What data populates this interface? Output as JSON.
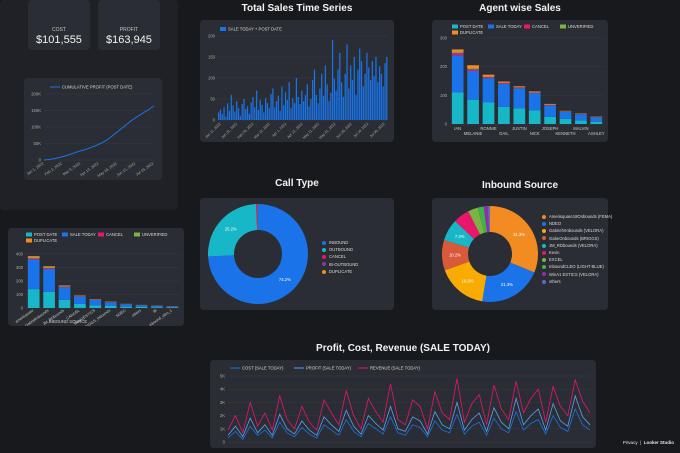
{
  "metrics": {
    "cost": {
      "label": "COST",
      "value": "$101,555"
    },
    "profit": {
      "label": "PROFIT",
      "value": "$163,945"
    }
  },
  "footer": {
    "privacy": "Privacy",
    "brand": "Looker Studio"
  },
  "colors": {
    "post_date": "#17b7c8",
    "sale_today": "#1a73e8",
    "cancel": "#e8176b",
    "unverified": "#7cb342",
    "duplicate": "#f28b22"
  },
  "chart_data": [
    {
      "id": "cumulative",
      "type": "line",
      "legend": [
        "CUMULATIVE PROFIT (POST DATE)"
      ],
      "yticks": [
        "200K",
        "150K",
        "100K",
        "50K",
        "0"
      ],
      "ylim": [
        0,
        200000
      ],
      "xticks": [
        "Jan 1, 2022",
        "Feb 2, 2022",
        "Mar 9, 2022",
        "Apr 13, 2022",
        "May 16, 2022",
        "Jun 15, 2022",
        "Jul 19, 2022"
      ],
      "values": [
        0,
        2000,
        5000,
        9000,
        14000,
        20000,
        26000,
        31000,
        37000,
        44000,
        52000,
        62000,
        76000,
        90000,
        104000,
        118000,
        130000,
        141000,
        152000,
        163945
      ]
    },
    {
      "id": "total_sales",
      "type": "bar",
      "title": "Total Sales Time Series",
      "legend": [
        "SALE TODAY + POST DATE"
      ],
      "yticks": [
        "200",
        "150",
        "100",
        "50",
        "0"
      ],
      "ylim": [
        0,
        200
      ],
      "xticks": [
        "Jan 11, 2022",
        "Jan 31, 2022",
        "Feb 20, 2022",
        "Mar 12, 2022",
        "Apr 1, 2022",
        "Apr 21, 2022",
        "May 11, 2022",
        "May 31, 2022",
        "Jun 20, 2022",
        "Jul 10, 2022",
        "Jul 30, 2022"
      ],
      "values": [
        18,
        25,
        14,
        30,
        8,
        40,
        22,
        60,
        35,
        20,
        45,
        28,
        10,
        38,
        50,
        26,
        33,
        15,
        42,
        55,
        30,
        70,
        24,
        48,
        36,
        18,
        52,
        40,
        28,
        62,
        75,
        30,
        45,
        58,
        22,
        80,
        35,
        66,
        48,
        90,
        28,
        52,
        40,
        100,
        55,
        38,
        70,
        45,
        60,
        85,
        32,
        50,
        95,
        120,
        60,
        40,
        75,
        110,
        58,
        130,
        85,
        45,
        65,
        190,
        98,
        70,
        120,
        160,
        90,
        55,
        110,
        180,
        75,
        130,
        95,
        150,
        60,
        120,
        170,
        140,
        80,
        110,
        160,
        125,
        95,
        140,
        105,
        150,
        90,
        128,
        110,
        80,
        135,
        150
      ]
    },
    {
      "id": "agent_sales",
      "type": "bar",
      "title": "Agent wise Sales",
      "legend": [
        "POST DATE",
        "SALE TODAY",
        "CANCEL",
        "UNVERIFIED",
        "DUPLICATE"
      ],
      "yticks": [
        "300",
        "200",
        "100",
        "0"
      ],
      "ylim": [
        0,
        300
      ],
      "categories": [
        "IAN",
        "MELANIE",
        "RONNIE",
        "GAIL",
        "JUSTIN",
        "NICK",
        "JOSEPH",
        "KENNETH",
        "MALVIN",
        "ASHLEY"
      ],
      "series": [
        {
          "name": "POST DATE",
          "values": [
            110,
            85,
            75,
            60,
            55,
            48,
            25,
            18,
            12,
            8
          ]
        },
        {
          "name": "SALE TODAY",
          "values": [
            130,
            100,
            85,
            80,
            70,
            60,
            40,
            25,
            22,
            15
          ]
        },
        {
          "name": "CANCEL",
          "values": [
            8,
            6,
            4,
            3,
            3,
            2,
            2,
            1,
            1,
            1
          ]
        },
        {
          "name": "UNVERIFIED",
          "values": [
            5,
            4,
            3,
            2,
            2,
            2,
            1,
            1,
            1,
            1
          ]
        },
        {
          "name": "DUPLICATE",
          "values": [
            7,
            10,
            5,
            3,
            2,
            2,
            2,
            1,
            1,
            1
          ]
        }
      ]
    },
    {
      "id": "call_type",
      "type": "pie",
      "title": "Call Type",
      "categories": [
        "INBOUND",
        "OUTBOUND",
        "CANCEL",
        "IB-OUTBOUND",
        "DUPLICATE"
      ],
      "values": [
        74.2,
        25.2,
        0.3,
        0.2,
        0.1
      ],
      "labels": [
        "74.2%",
        "25.2%"
      ],
      "colors": [
        "#1a73e8",
        "#17b7c8",
        "#e8176b",
        "#7b3fa0",
        "#f28b22"
      ]
    },
    {
      "id": "inbound_source",
      "type": "pie",
      "title": "Inbound Source",
      "categories": [
        "Amerisquare18Onbounds (FEMA)",
        "NDEO",
        "GabrielVInbounds (VELORA)",
        "GabeOnbounds (BRIGGS)",
        "JM_RDbounds (VELORA)",
        "Kevin",
        "EXCEL",
        "InboundCLEO (LIGHT BLUE)",
        "WinA1 ESTICS (VELORA)",
        "others"
      ],
      "values": [
        31.3,
        21.3,
        16.9,
        10.2,
        7.3,
        5.5,
        3.4,
        2.0,
        1.3,
        0.8
      ],
      "labels": [
        "31.3%",
        "21.3%",
        "16.9%",
        "10.2%",
        "7.3%"
      ],
      "colors": [
        "#f28b22",
        "#1a73e8",
        "#f9ab00",
        "#d9593b",
        "#17b7c8",
        "#e8176b",
        "#7cb342",
        "#3bb54a",
        "#9c27b0",
        "#5c6bc0"
      ]
    },
    {
      "id": "inbound_source_bar",
      "type": "bar",
      "legend": [
        "POST DATE",
        "SALE TODAY",
        "CANCEL",
        "UNVERIFIED",
        "DUPLICATE"
      ],
      "yticks": [
        "400",
        "300",
        "200",
        "100",
        "0"
      ],
      "ylim": [
        0,
        400
      ],
      "xlabel": "INBOUND SOURCE",
      "categories": [
        "amerisquare",
        "GabrielInbounds",
        "JM_RDbounds",
        "CANCEL",
        "WinA1ESTICS",
        "BRIGGS_Inbounds",
        "NDEO",
        "others",
        "IB",
        "inbound_cleo_1"
      ],
      "series": [
        {
          "name": "POST DATE",
          "values": [
            140,
            120,
            60,
            30,
            20,
            15,
            10,
            8,
            6,
            4
          ]
        },
        {
          "name": "SALE TODAY",
          "values": [
            220,
            170,
            95,
            55,
            40,
            28,
            18,
            12,
            9,
            6
          ]
        },
        {
          "name": "CANCEL",
          "values": [
            8,
            6,
            4,
            3,
            2,
            2,
            1,
            1,
            1,
            1
          ]
        },
        {
          "name": "UNVERIFIED",
          "values": [
            6,
            5,
            3,
            2,
            2,
            1,
            1,
            1,
            1,
            1
          ]
        },
        {
          "name": "DUPLICATE",
          "values": [
            10,
            8,
            5,
            3,
            2,
            2,
            1,
            1,
            1,
            1
          ]
        }
      ]
    },
    {
      "id": "profit_cost_revenue",
      "type": "line",
      "title": "Profit, Cost, Revenue (SALE TODAY)",
      "legend": [
        "COST (SALE TODAY)",
        "PROFIT (SALE TODAY)",
        "REVENUE (SALE TODAY)"
      ],
      "yticks": [
        "5K",
        "4K",
        "3K",
        "2K",
        "1K",
        "0"
      ],
      "ylim": [
        0,
        5000
      ],
      "series": [
        {
          "name": "COST (SALE TODAY)",
          "color": "#1a73e8",
          "values": [
            300,
            800,
            200,
            1200,
            500,
            900,
            300,
            1500,
            700,
            400,
            1100,
            600,
            300,
            1300,
            900,
            500,
            1700,
            800,
            400,
            1400,
            1000,
            600,
            1900,
            700,
            500,
            1300,
            1100,
            400,
            1600,
            900,
            700,
            2100,
            600,
            1200,
            1500,
            500,
            1800,
            1000,
            700,
            2300,
            900,
            1400,
            1700,
            600,
            2000,
            1100,
            800,
            2500,
            1300,
            900
          ]
        },
        {
          "name": "PROFIT (SALE TODAY)",
          "color": "#5aa3f0",
          "values": [
            500,
            1200,
            400,
            1800,
            700,
            1300,
            500,
            2100,
            1000,
            600,
            1600,
            900,
            500,
            1900,
            1300,
            800,
            2400,
            1200,
            600,
            2000,
            1400,
            900,
            2700,
            1000,
            800,
            1900,
            1600,
            600,
            2300,
            1300,
            1000,
            3000,
            900,
            1700,
            2200,
            800,
            2600,
            1500,
            1000,
            3300,
            1300,
            2000,
            2500,
            900,
            2900,
            1600,
            1200,
            3500,
            1900,
            1300
          ]
        },
        {
          "name": "REVENUE (SALE TODAY)",
          "color": "#e8176b",
          "values": [
            900,
            2000,
            700,
            3000,
            1200,
            2200,
            900,
            3500,
            1700,
            1000,
            2700,
            1500,
            900,
            3200,
            2200,
            1300,
            3900,
            2000,
            1000,
            3300,
            2300,
            1500,
            4400,
            1700,
            1300,
            3200,
            2700,
            1000,
            3800,
            2200,
            1700,
            4800,
            1500,
            2900,
            3600,
            1300,
            4300,
            2500,
            1700,
            4600,
            2200,
            3300,
            4000,
            1500,
            4200,
            2700,
            2000,
            4700,
            3100,
            2200
          ]
        }
      ]
    }
  ]
}
